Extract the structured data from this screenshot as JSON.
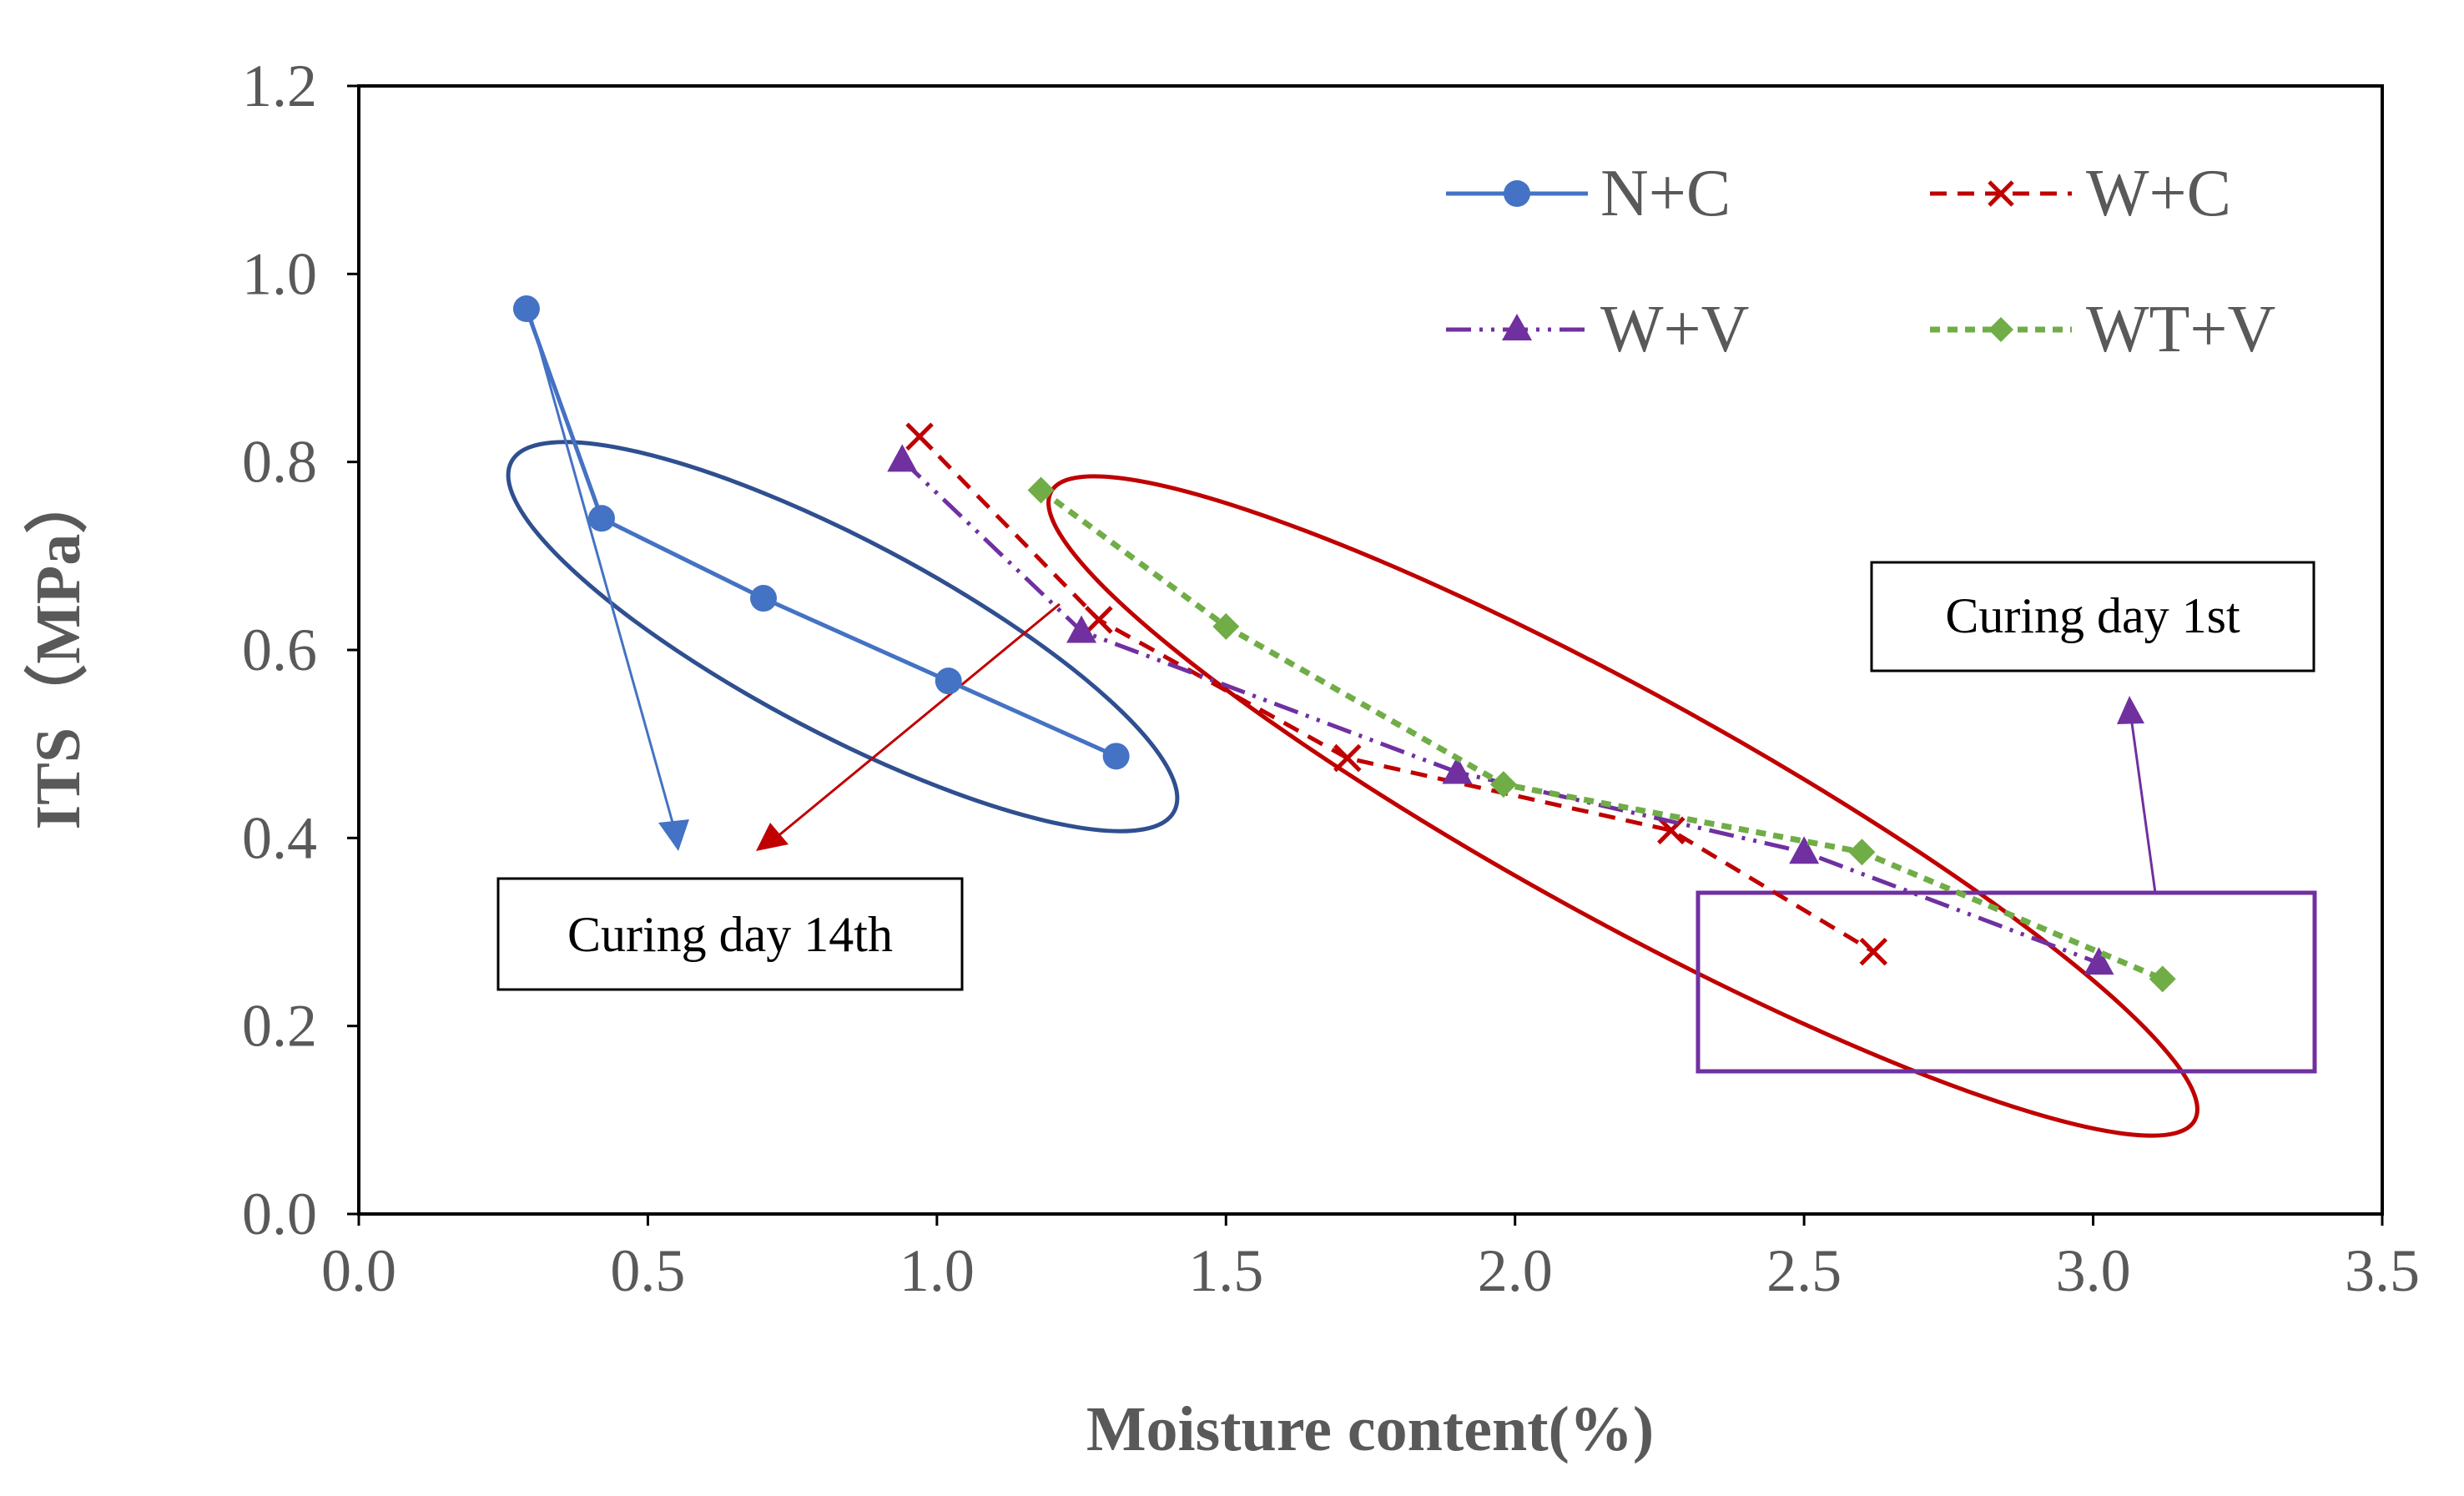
{
  "chart_data": {
    "type": "line",
    "title": "",
    "xlabel": "Moisture content(%)",
    "ylabel": "ITS（MPa）",
    "xlim": [
      0,
      3.5
    ],
    "ylim": [
      0,
      1.2
    ],
    "xticks": [
      "0.0",
      "0.5",
      "1.0",
      "1.5",
      "2.0",
      "2.5",
      "3.0",
      "3.5"
    ],
    "yticks": [
      "0.0",
      "0.2",
      "0.4",
      "0.6",
      "0.8",
      "1.0",
      "1.2"
    ],
    "grid": false,
    "legend_position": "top-right",
    "series": [
      {
        "name": "N+C",
        "color": "#4472c4",
        "marker": "circle",
        "dash": "solid",
        "x": [
          0.29,
          0.42,
          0.7,
          1.02,
          1.31
        ],
        "y": [
          0.963,
          0.74,
          0.655,
          0.567,
          0.487
        ]
      },
      {
        "name": "W+C",
        "color": "#c00000",
        "marker": "x",
        "dash": "dash",
        "x": [
          0.97,
          1.28,
          1.71,
          2.27,
          2.62
        ],
        "y": [
          0.827,
          0.632,
          0.485,
          0.408,
          0.279
        ]
      },
      {
        "name": "W+V",
        "color": "#7030a0",
        "marker": "triangle",
        "dash": "dashdotdot",
        "x": [
          0.94,
          1.25,
          1.9,
          2.5,
          3.01
        ],
        "y": [
          0.802,
          0.62,
          0.47,
          0.385,
          0.267
        ]
      },
      {
        "name": "WT+V",
        "color": "#70ad47",
        "marker": "diamond",
        "dash": "shortdash",
        "x": [
          1.18,
          1.5,
          1.98,
          2.6,
          3.12
        ],
        "y": [
          0.77,
          0.625,
          0.457,
          0.385,
          0.25
        ]
      }
    ],
    "annotations": [
      {
        "text": "Curing day 14th"
      },
      {
        "text": "Curing day 1st"
      }
    ]
  }
}
